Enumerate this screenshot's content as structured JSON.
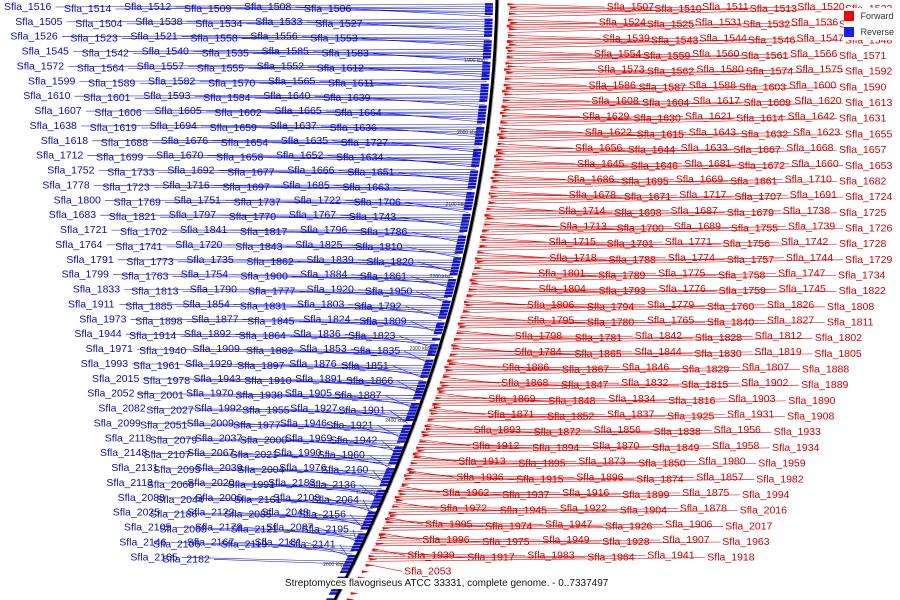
{
  "caption": "Streptomyces flavogriseus ATCC 33331, complete genome. - 0..7337497",
  "legend": [
    {
      "label": "Forward",
      "color": "#ff0000"
    },
    {
      "label": "Reverse",
      "color": "#1a1aff"
    }
  ],
  "colors": {
    "forward": "#d00000",
    "reverse": "#0a0ab4",
    "backbone": "#000000"
  },
  "ticks": [
    "1900 kbp",
    "2000 kbp",
    "2100 kbp",
    "2200 kbp",
    "2300 kbp",
    "2400 kbp",
    "2500 kbp",
    "2600 kbp"
  ],
  "reverse_labels": [
    "Sfla_1516",
    "Sfla_1514",
    "Sfla_1512",
    "Sfla_1509",
    "Sfla_1508",
    "Sfla_1506",
    "Sfla_1505",
    "Sfla_1504",
    "Sfla_1538",
    "Sfla_1534",
    "Sfla_1533",
    "Sfla_1527",
    "Sfla_1526",
    "Sfla_1523",
    "Sfla_1521",
    "Sfla_1558",
    "Sfla_1556",
    "Sfla_1553",
    "Sfla_1545",
    "Sfla_1542",
    "Sfla_1540",
    "Sfla_1535",
    "Sfla_1585",
    "Sfla_1583",
    "Sfla_1572",
    "Sfla_1564",
    "Sfla_1557",
    "Sfla_1555",
    "Sfla_1552",
    "Sfla_1612",
    "Sfla_1599",
    "Sfla_1589",
    "Sfla_1582",
    "Sfla_1570",
    "Sfla_1565",
    "Sfla_1611",
    "Sfla_1610",
    "Sfla_1601",
    "Sfla_1593",
    "Sfla_1584",
    "Sfla_1640",
    "Sfla_1639",
    "Sfla_1607",
    "Sfla_1606",
    "Sfla_1605",
    "Sfla_1602",
    "Sfla_1665",
    "Sfla_1664",
    "Sfla_1638",
    "Sfla_1619",
    "Sfla_1694",
    "Sfla_1659",
    "Sfla_1637",
    "Sfla_1636",
    "Sfla_1618",
    "Sfla_1688",
    "Sfla_1676",
    "Sfla_1654",
    "Sfla_1635",
    "Sfla_1727",
    "Sfla_1712",
    "Sfla_1699",
    "Sfla_1670",
    "Sfla_1658",
    "Sfla_1652",
    "Sfla_1634",
    "Sfla_1752",
    "Sfla_1733",
    "Sfla_1692",
    "Sfla_1677",
    "Sfla_1666",
    "Sfla_1651",
    "Sfla_1778",
    "Sfla_1723",
    "Sfla_1716",
    "Sfla_1697",
    "Sfla_1685",
    "Sfla_1663",
    "Sfla_1800",
    "Sfla_1769",
    "Sfla_1751",
    "Sfla_1737",
    "Sfla_1722",
    "Sfla_1706",
    "Sfla_1683",
    "Sfla_1821",
    "Sfla_1797",
    "Sfla_1770",
    "Sfla_1767",
    "Sfla_1743",
    "Sfla_1721",
    "Sfla_1702",
    "Sfla_1841",
    "Sfla_1817",
    "Sfla_1796",
    "Sfla_1786",
    "Sfla_1764",
    "Sfla_1741",
    "Sfla_1720",
    "Sfla_1843",
    "Sfla_1825",
    "Sfla_1810",
    "Sfla_1791",
    "Sfla_1773",
    "Sfla_1735",
    "Sfla_1862",
    "Sfla_1839",
    "Sfla_1820",
    "Sfla_1799",
    "Sfla_1763",
    "Sfla_1754",
    "Sfla_1900",
    "Sfla_1884",
    "Sfla_1861",
    "Sfla_1833",
    "Sfla_1813",
    "Sfla_1790",
    "Sfla_1777",
    "Sfla_1920",
    "Sfla_1950",
    "Sfla_1911",
    "Sfla_1885",
    "Sfla_1854",
    "Sfla_1831",
    "Sfla_1803",
    "Sfla_1792",
    "Sfla_1973",
    "Sfla_1898",
    "Sfla_1877",
    "Sfla_1845",
    "Sfla_1824",
    "Sfla_1809",
    "Sfla_1944",
    "Sfla_1914",
    "Sfla_1892",
    "Sfla_1864",
    "Sfla_1836",
    "Sfla_1823",
    "Sfla_1971",
    "Sfla_1940",
    "Sfla_1909",
    "Sfla_1882",
    "Sfla_1853",
    "Sfla_1835",
    "Sfla_1993",
    "Sfla_1961",
    "Sfla_1929",
    "Sfla_1897",
    "Sfla_1876",
    "Sfla_1851",
    "Sfla_2015",
    "Sfla_1978",
    "Sfla_1943",
    "Sfla_1910",
    "Sfla_1891",
    "Sfla_1866",
    "Sfla_2052",
    "Sfla_2001",
    "Sfla_1970",
    "Sfla_1938",
    "Sfla_1905",
    "Sfla_1887",
    "Sfla_2082",
    "Sfla_2027",
    "Sfla_1992",
    "Sfla_1955",
    "Sfla_1927",
    "Sfla_1901",
    "Sfla_2099",
    "Sfla_2051",
    "Sfla_2009",
    "Sfla_1977",
    "Sfla_1946",
    "Sfla_1921",
    "Sfla_2118",
    "Sfla_2079",
    "Sfla_2037",
    "Sfla_2000",
    "Sfla_1969",
    "Sfla_1942",
    "Sfla_2148",
    "Sfla_2107",
    "Sfla_2067",
    "Sfla_2021",
    "Sfla_1990",
    "Sfla_1960",
    "Sfla_2131",
    "Sfla_2095",
    "Sfla_2039",
    "Sfla_2004",
    "Sfla_1976",
    "Sfla_2160",
    "Sfla_2113",
    "Sfla_2066",
    "Sfla_2020",
    "Sfla_1991",
    "Sfla_2183",
    "Sfla_2136",
    "Sfla_2088",
    "Sfla_2044",
    "Sfla_2006",
    "Sfla_2161",
    "Sfla_2108",
    "Sfla_2064",
    "Sfla_2025",
    "Sfla_2186",
    "Sfla_2122",
    "Sfla_2085",
    "Sfla_2048",
    "Sfla_2156",
    "Sfla_2105",
    "Sfla_2068",
    "Sfla_2178",
    "Sfla_2121",
    "Sfla_2087",
    "Sfla_2195",
    "Sfla_2146",
    "Sfla_2106",
    "Sfla_2167",
    "Sfla_2119",
    "Sfla_2181",
    "Sfla_2141",
    "Sfla_2165",
    "Sfla_2182"
  ],
  "forward_labels": [
    "Sfla_1507",
    "Sfla_1510",
    "Sfla_1511",
    "Sfla_1513",
    "Sfla_1520",
    "Sfla_1522",
    "Sfla_1524",
    "Sfla_1525",
    "Sfla_1531",
    "Sfla_1532",
    "Sfla_1536",
    "Sfla_1537",
    "Sfla_1539",
    "Sfla_1543",
    "Sfla_1544",
    "Sfla_1546",
    "Sfla_1547",
    "Sfla_1548",
    "Sfla_1554",
    "Sfla_1559",
    "Sfla_1560",
    "Sfla_1561",
    "Sfla_1566",
    "Sfla_1571",
    "Sfla_1573",
    "Sfla_1562",
    "Sfla_1580",
    "Sfla_1574",
    "Sfla_1575",
    "Sfla_1592",
    "Sfla_1586",
    "Sfla_1587",
    "Sfla_1588",
    "Sfla_1603",
    "Sfla_1600",
    "Sfla_1590",
    "Sfla_1608",
    "Sfla_1604",
    "Sfla_1617",
    "Sfla_1609",
    "Sfla_1620",
    "Sfla_1613",
    "Sfla_1629",
    "Sfla_1630",
    "Sfla_1621",
    "Sfla_1614",
    "Sfla_1642",
    "Sfla_1631",
    "Sfla_1622",
    "Sfla_1615",
    "Sfla_1643",
    "Sfla_1632",
    "Sfla_1623",
    "Sfla_1655",
    "Sfla_1656",
    "Sfla_1644",
    "Sfla_1633",
    "Sfla_1667",
    "Sfla_1668",
    "Sfla_1657",
    "Sfla_1645",
    "Sfla_1646",
    "Sfla_1681",
    "Sfla_1672",
    "Sfla_1660",
    "Sfla_1653",
    "Sfla_1686",
    "Sfla_1695",
    "Sfla_1669",
    "Sfla_1661",
    "Sfla_1710",
    "Sfla_1682",
    "Sfla_1678",
    "Sfla_1671",
    "Sfla_1717",
    "Sfla_1707",
    "Sfla_1691",
    "Sfla_1724",
    "Sfla_1714",
    "Sfla_1698",
    "Sfla_1687",
    "Sfla_1679",
    "Sfla_1738",
    "Sfla_1725",
    "Sfla_1713",
    "Sfla_1700",
    "Sfla_1689",
    "Sfla_1755",
    "Sfla_1739",
    "Sfla_1726",
    "Sfla_1715",
    "Sfla_1701",
    "Sfla_1771",
    "Sfla_1756",
    "Sfla_1742",
    "Sfla_1728",
    "Sfla_1718",
    "Sfla_1788",
    "Sfla_1774",
    "Sfla_1757",
    "Sfla_1744",
    "Sfla_1729",
    "Sfla_1801",
    "Sfla_1789",
    "Sfla_1775",
    "Sfla_1758",
    "Sfla_1747",
    "Sfla_1734",
    "Sfla_1804",
    "Sfla_1793",
    "Sfla_1776",
    "Sfla_1759",
    "Sfla_1745",
    "Sfla_1822",
    "Sfla_1806",
    "Sfla_1794",
    "Sfla_1779",
    "Sfla_1760",
    "Sfla_1826",
    "Sfla_1808",
    "Sfla_1795",
    "Sfla_1780",
    "Sfla_1765",
    "Sfla_1840",
    "Sfla_1827",
    "Sfla_1811",
    "Sfla_1798",
    "Sfla_1781",
    "Sfla_1842",
    "Sfla_1828",
    "Sfla_1812",
    "Sfla_1802",
    "Sfla_1784",
    "Sfla_1865",
    "Sfla_1844",
    "Sfla_1830",
    "Sfla_1819",
    "Sfla_1805",
    "Sfla_1886",
    "Sfla_1867",
    "Sfla_1846",
    "Sfla_1829",
    "Sfla_1807",
    "Sfla_1888",
    "Sfla_1868",
    "Sfla_1847",
    "Sfla_1832",
    "Sfla_1815",
    "Sfla_1902",
    "Sfla_1889",
    "Sfla_1869",
    "Sfla_1848",
    "Sfla_1834",
    "Sfla_1816",
    "Sfla_1903",
    "Sfla_1890",
    "Sfla_1871",
    "Sfla_1852",
    "Sfla_1837",
    "Sfla_1925",
    "Sfla_1931",
    "Sfla_1908",
    "Sfla_1893",
    "Sfla_1872",
    "Sfla_1856",
    "Sfla_1838",
    "Sfla_1956",
    "Sfla_1933",
    "Sfla_1912",
    "Sfla_1894",
    "Sfla_1870",
    "Sfla_1849",
    "Sfla_1958",
    "Sfla_1934",
    "Sfla_1913",
    "Sfla_1895",
    "Sfla_1873",
    "Sfla_1850",
    "Sfla_1980",
    "Sfla_1959",
    "Sfla_1936",
    "Sfla_1915",
    "Sfla_1896",
    "Sfla_1874",
    "Sfla_1857",
    "Sfla_1982",
    "Sfla_1962",
    "Sfla_1937",
    "Sfla_1916",
    "Sfla_1899",
    "Sfla_1875",
    "Sfla_1994",
    "Sfla_1972",
    "Sfla_1945",
    "Sfla_1922",
    "Sfla_1904",
    "Sfla_1878",
    "Sfla_2016",
    "Sfla_1995",
    "Sfla_1974",
    "Sfla_1947",
    "Sfla_1926",
    "Sfla_1906",
    "Sfla_2017",
    "Sfla_1996",
    "Sfla_1975",
    "Sfla_1949",
    "Sfla_1928",
    "Sfla_1907",
    "Sfla_1963",
    "Sfla_1939",
    "Sfla_1917",
    "Sfla_1983",
    "Sfla_1964",
    "Sfla_1941",
    "Sfla_1918",
    "Sfla_2053"
  ]
}
